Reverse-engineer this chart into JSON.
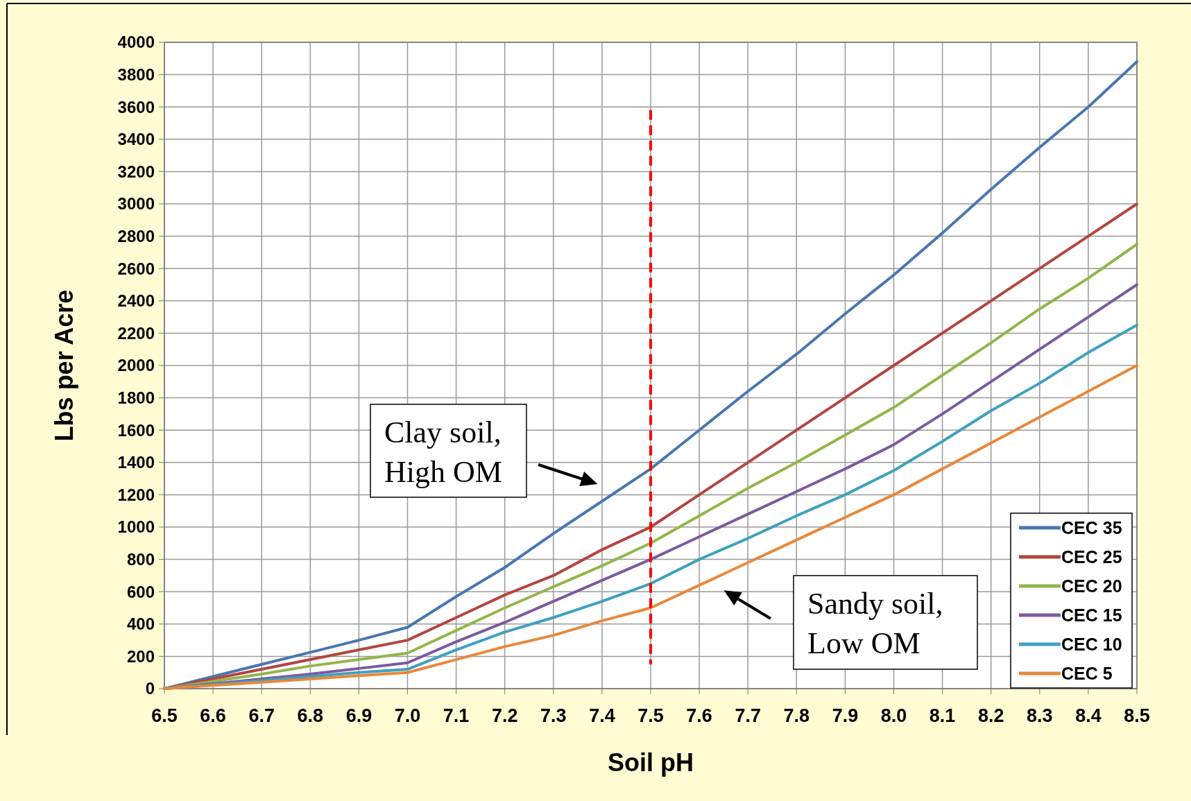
{
  "chart_data": {
    "type": "line",
    "xlabel": "Soil pH",
    "ylabel": "Lbs per Acre",
    "x": [
      6.5,
      6.6,
      6.7,
      6.8,
      6.9,
      7.0,
      7.1,
      7.2,
      7.3,
      7.4,
      7.5,
      7.6,
      7.7,
      7.8,
      7.9,
      8.0,
      8.1,
      8.2,
      8.3,
      8.4,
      8.5
    ],
    "series": [
      {
        "name": "CEC 35",
        "color": "#4a76b0",
        "values": [
          0,
          75,
          150,
          225,
          300,
          380,
          570,
          750,
          960,
          1160,
          1360,
          1600,
          1840,
          2070,
          2320,
          2560,
          2820,
          3090,
          3350,
          3600,
          3880
        ]
      },
      {
        "name": "CEC 25",
        "color": "#b5443f",
        "values": [
          0,
          60,
          120,
          180,
          240,
          300,
          440,
          580,
          700,
          860,
          1000,
          1200,
          1400,
          1600,
          1800,
          2000,
          2200,
          2400,
          2600,
          2800,
          3000
        ]
      },
      {
        "name": "CEC 20",
        "color": "#93b54a",
        "values": [
          0,
          45,
          90,
          140,
          180,
          220,
          360,
          500,
          630,
          760,
          900,
          1070,
          1240,
          1400,
          1570,
          1740,
          1940,
          2140,
          2350,
          2540,
          2750
        ]
      },
      {
        "name": "CEC 15",
        "color": "#7b5a9e",
        "values": [
          0,
          30,
          60,
          90,
          125,
          160,
          290,
          410,
          540,
          670,
          800,
          940,
          1080,
          1220,
          1360,
          1510,
          1700,
          1900,
          2100,
          2300,
          2500
        ]
      },
      {
        "name": "CEC 10",
        "color": "#3fa0bf",
        "values": [
          0,
          25,
          50,
          75,
          100,
          120,
          240,
          350,
          440,
          540,
          650,
          800,
          930,
          1070,
          1200,
          1350,
          1530,
          1720,
          1890,
          2080,
          2250
        ]
      },
      {
        "name": "CEC 5",
        "color": "#e8883a",
        "values": [
          0,
          20,
          40,
          60,
          80,
          100,
          180,
          260,
          330,
          420,
          500,
          640,
          780,
          920,
          1060,
          1200,
          1360,
          1520,
          1680,
          1840,
          2000
        ]
      }
    ],
    "xlim": [
      6.5,
      8.5
    ],
    "xticks": [
      6.5,
      6.6,
      6.7,
      6.8,
      6.9,
      {
        "value": 7,
        "label": "7.0"
      },
      7.1,
      7.2,
      7.3,
      7.4,
      7.5,
      7.6,
      7.7,
      7.8,
      7.9,
      {
        "value": 8,
        "label": "8.0"
      },
      8.1,
      8.2,
      8.3,
      8.4,
      8.5
    ],
    "ylim": [
      0,
      4000
    ],
    "yticks": [
      0,
      200,
      400,
      600,
      800,
      1000,
      1200,
      1400,
      1600,
      1800,
      2000,
      2200,
      2400,
      2600,
      2800,
      3000,
      3200,
      3400,
      3600,
      3800,
      4000
    ],
    "ref_lines": [
      {
        "axis": "x",
        "value": 7.5,
        "color": "#ff0000",
        "line_style": "dashed"
      }
    ],
    "annotations": [
      "Clay soil, High OM",
      "Sandy soil, Low OM"
    ],
    "grid": true,
    "legend": "bottom right",
    "marker": "none",
    "line_style": "solid"
  }
}
